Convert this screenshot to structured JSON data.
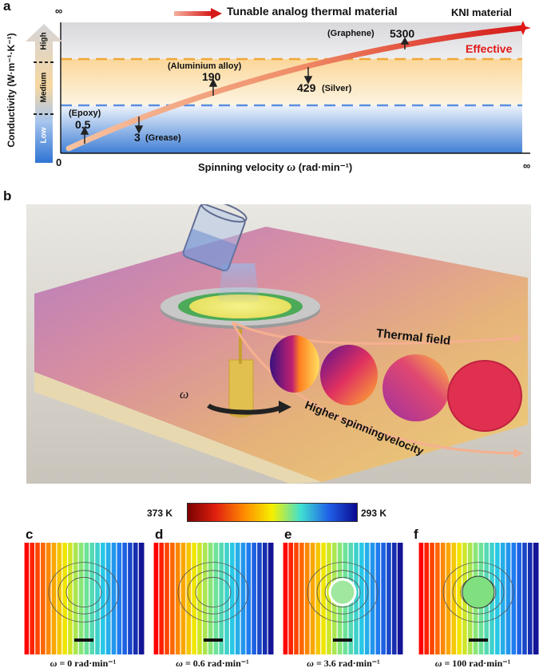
{
  "panels": {
    "a": "a",
    "b": "b",
    "c": "c",
    "d": "d",
    "e": "e",
    "f": "f"
  },
  "panel_a": {
    "header": "Tunable analog thermal material",
    "kni_label": "KNI material",
    "effective_label": "Effective",
    "y_axis": "Conductivity (W·m⁻¹·K⁻¹)",
    "x_axis_prefix": "Spinning velocity ",
    "x_axis_symbol": "ω",
    "x_axis_suffix": " (rad·min⁻¹)",
    "origin": "0",
    "infinity_y": "∞",
    "infinity_x": "∞",
    "levels": {
      "high": "High",
      "medium": "Medium",
      "low": "Low"
    },
    "materials": [
      {
        "name": "(Epoxy)",
        "value": "0.5"
      },
      {
        "name": "(Grease)",
        "value": "3"
      },
      {
        "name": "(Aluminium alloy)",
        "value": "190"
      },
      {
        "name": "(Silver)",
        "value": "429"
      },
      {
        "name": "(Graphene)",
        "value": "5300"
      }
    ]
  },
  "panel_b": {
    "thermal_field": "Thermal  field",
    "higher_velocity": "Higher spinningvelocity",
    "omega": "ω"
  },
  "colorbar": {
    "left": "373 K",
    "right": "293 K",
    "colors": [
      "#7a0000",
      "#e02010",
      "#ff8a00",
      "#f5f000",
      "#40e0d0",
      "#2060e8",
      "#0a0a90"
    ]
  },
  "captions": [
    {
      "symbol": "ω",
      "text": " = 0 rad·min⁻¹"
    },
    {
      "symbol": "ω",
      "text": " = 0.6 rad·min⁻¹"
    },
    {
      "symbol": "ω",
      "text": " = 3.6 rad·min⁻¹"
    },
    {
      "symbol": "ω",
      "text": " = 100 rad·min⁻¹"
    }
  ]
}
